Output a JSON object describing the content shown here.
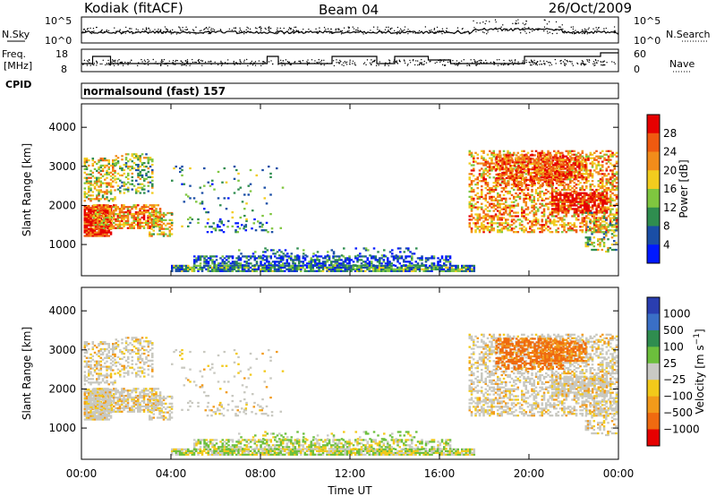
{
  "header": {
    "title": "Kodiak (fitACF)",
    "beam": "Beam 04",
    "date": "26/Oct/2009"
  },
  "noise_panel": {
    "left_label": "N.Sky",
    "right_label": "N.Search",
    "ticks": [
      "10^5",
      "10^0"
    ]
  },
  "freq_panel": {
    "left_label_line1": "Freq.",
    "left_label_line2": "[MHz]",
    "left_ticks": [
      "18",
      "8"
    ],
    "right_label": "Nave",
    "right_ticks": [
      "60",
      "0"
    ],
    "cpid_label": "CPID"
  },
  "cpid_text": "normalsound (fast) 157",
  "colors": {
    "power_scale": [
      "#0019ff",
      "#1a4ea6",
      "#2f8d4f",
      "#7fc63f",
      "#f2cc1e",
      "#f28c1a",
      "#ef5a10",
      "#e60000"
    ],
    "velocity_scale": [
      "#2a3eb0",
      "#3a6fc6",
      "#2f8d4f",
      "#6cbf3c",
      "#c9c9c4",
      "#f2c91a",
      "#f29a1a",
      "#ef6a10",
      "#e60000"
    ],
    "ground_scatter": "#c8c8c0"
  },
  "chart_data": [
    {
      "type": "heatmap",
      "title": "Power",
      "ylabel": "Slant Range [km]",
      "y_ticks": [
        "1000",
        "2000",
        "3000",
        "4000"
      ],
      "ylim": [
        200,
        4600
      ],
      "x_ticks": [
        "00:00",
        "04:00",
        "08:00",
        "12:00",
        "16:00",
        "20:00",
        "00:00"
      ],
      "xlim": [
        0,
        24
      ],
      "colorbar": {
        "label": "Power [dB]",
        "ticks": [
          "4",
          "8",
          "12",
          "16",
          "20",
          "24",
          "28"
        ]
      }
    },
    {
      "type": "heatmap",
      "title": "Velocity",
      "ylabel": "Slant Range [km]",
      "y_ticks": [
        "1000",
        "2000",
        "3000",
        "4000"
      ],
      "ylim": [
        200,
        4600
      ],
      "x_ticks": [
        "00:00",
        "04:00",
        "08:00",
        "12:00",
        "16:00",
        "20:00",
        "00:00"
      ],
      "xlabel": "Time UT",
      "xlim": [
        0,
        24
      ],
      "colorbar": {
        "label": "Velocity [m s^-1]",
        "ticks": [
          "1000",
          "500",
          "100",
          "25",
          "−25",
          "−100",
          "−500",
          "−1000"
        ]
      }
    }
  ]
}
